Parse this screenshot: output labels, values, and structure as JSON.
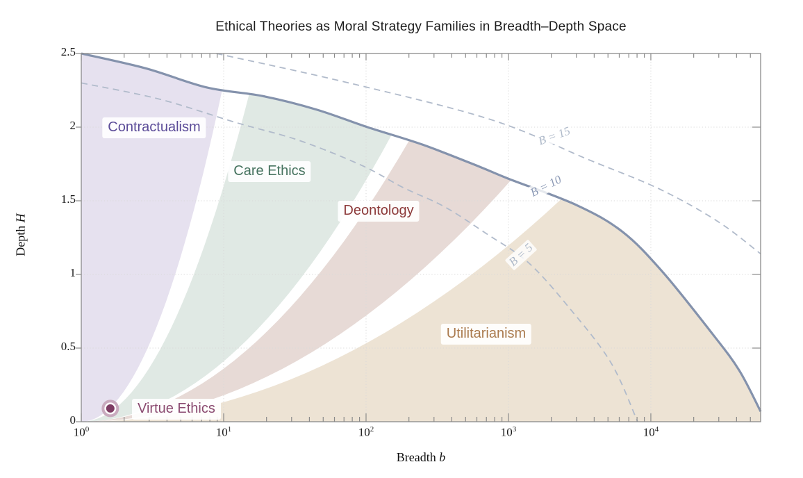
{
  "chart_data": {
    "type": "area",
    "title": "Ethical Theories as Moral Strategy Families in Breadth–Depth Space",
    "xlabel": {
      "text": "Breadth",
      "var": "b"
    },
    "ylabel": {
      "text": "Depth",
      "var": "H"
    },
    "x_scale": "log10",
    "x_range_log10": [
      0,
      4.771
    ],
    "y_range": [
      0,
      2.5
    ],
    "x_ticks": [
      {
        "base": "10",
        "exp": "0"
      },
      {
        "base": "10",
        "exp": "1"
      },
      {
        "base": "10",
        "exp": "2"
      },
      {
        "base": "10",
        "exp": "3"
      },
      {
        "base": "10",
        "exp": "4"
      }
    ],
    "x_minor_tick_multiples": [
      2,
      3,
      4,
      5,
      6,
      7,
      8,
      9
    ],
    "y_ticks": [
      {
        "label": "0",
        "value": 0
      },
      {
        "label": "0.5",
        "value": 0.5
      },
      {
        "label": "1",
        "value": 1
      },
      {
        "label": "1.5",
        "value": 1.5
      },
      {
        "label": "2",
        "value": 2
      },
      {
        "label": "2.5",
        "value": 2.5
      }
    ],
    "grid": {
      "show": true,
      "style": "dotted",
      "color": "#d9d9d9"
    },
    "frame_color": "#8a8a8a",
    "tick_color": "#8a8a8a",
    "legend": "none",
    "budget_curves": [
      {
        "label": "B = 15",
        "style": "dashed",
        "color": "#b1bbcb",
        "width": 1.8,
        "label_color": "#aeb9c9",
        "label_log10b": 3.322,
        "label_H": 1.94,
        "label_rotation_deg": -20,
        "points_log10b_H": [
          [
            0.95,
            2.5
          ],
          [
            1.88,
            2.3
          ],
          [
            2.88,
            2.05
          ],
          [
            3.56,
            1.78
          ],
          [
            4.06,
            1.58
          ],
          [
            4.47,
            1.36
          ],
          [
            4.771,
            1.14
          ]
        ]
      },
      {
        "label": "B = 10",
        "style": "solid",
        "color": "#8492ac",
        "width": 3.2,
        "label_color": "#8b99b5",
        "label_log10b": 3.263,
        "label_H": 1.6,
        "label_rotation_deg": -27,
        "points_log10b_H": [
          [
            0,
            2.5
          ],
          [
            0.45,
            2.4
          ],
          [
            0.88,
            2.27
          ],
          [
            1.28,
            2.21
          ],
          [
            1.65,
            2.12
          ],
          [
            2.01,
            2.0
          ],
          [
            2.4,
            1.88
          ],
          [
            2.8,
            1.73
          ],
          [
            3.0,
            1.65
          ],
          [
            3.48,
            1.47
          ],
          [
            3.8,
            1.29
          ],
          [
            4.08,
            1.02
          ],
          [
            4.43,
            0.6
          ],
          [
            4.62,
            0.35
          ],
          [
            4.771,
            0.07
          ]
        ]
      },
      {
        "label": "B = 5",
        "style": "dashed",
        "color": "#b1bbcb",
        "width": 1.8,
        "label_color": "#aeb9c9",
        "label_log10b": 3.088,
        "label_H": 1.132,
        "label_rotation_deg": -42,
        "points_log10b_H": [
          [
            0,
            2.3
          ],
          [
            0.55,
            2.19
          ],
          [
            1.09,
            2.03
          ],
          [
            1.53,
            1.91
          ],
          [
            1.97,
            1.74
          ],
          [
            2.26,
            1.59
          ],
          [
            2.55,
            1.46
          ],
          [
            2.84,
            1.28
          ],
          [
            3.14,
            1.08
          ],
          [
            3.43,
            0.77
          ],
          [
            3.72,
            0.4
          ],
          [
            3.907,
            0.0
          ]
        ]
      }
    ],
    "region_boundary_model": "H = c * (log10 b)^2, clipped above by the B = 10 curve",
    "regions": [
      {
        "label": "Contractualism",
        "fill": "#e6e1ef",
        "label_color": "#5b4b98",
        "c_upper": null,
        "c_lower": 2.3,
        "label_log10b": 0.512,
        "label_H": 1.995
      },
      {
        "label": "Care Ethics",
        "fill": "#e0e9e4",
        "label_color": "#46735f",
        "c_upper": 1.6,
        "c_lower": 0.41,
        "label_log10b": 1.322,
        "label_H": 1.698
      },
      {
        "label": "Deontology",
        "fill": "#e7dad6",
        "label_color": "#8c3a3a",
        "c_upper": 0.36,
        "c_lower": 0.18,
        "label_log10b": 2.088,
        "label_H": 1.429
      },
      {
        "label": "Utilitarianism",
        "fill": "#ede3d4",
        "label_color": "#aa7a4d",
        "c_upper": 0.133,
        "c_lower": 0,
        "label_log10b": 2.844,
        "label_H": 0.594
      }
    ],
    "point_annotation": {
      "label": "Virtue Ethics",
      "label_color": "#8a4a70",
      "log10b": 0.204,
      "H": 0.09,
      "dot_color": "#7d3c63",
      "ring_color": "#c9aabe",
      "label_log10b": 0.668,
      "label_H": 0.085
    }
  }
}
